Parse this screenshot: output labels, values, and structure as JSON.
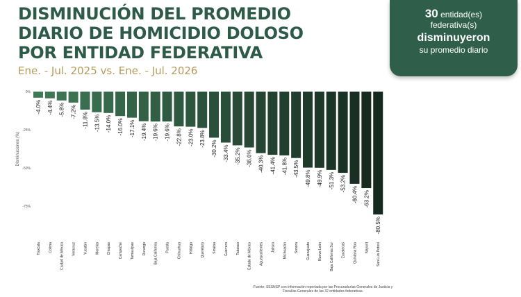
{
  "header": {
    "title_lines": [
      "DISMINUCIÓN DEL PROMEDIO",
      "DIARIO DE HOMICIDIO DOLOSO",
      "POR ENTIDAD FEDERATIVA"
    ],
    "subtitle": "Ene. - Jul. 2025 vs. Ene. - Jul. 2026"
  },
  "summary": {
    "count": "30",
    "line1_suffix": "entidad(es)",
    "line2": "federativa(s)",
    "line3": "disminuyeron",
    "line4": "su promedio diario"
  },
  "source": "Fuente: SESNSP con información reportada por las Procuradurías Generales de Justicia y Fiscalías Generales de las 32 entidades federativas.",
  "colors": {
    "title": "#2e5a48",
    "subtitle": "#b59a5e",
    "card_bg": "#2f5f4b",
    "bar_light": "#3f7a58",
    "bar_dark": "#16291f"
  },
  "chart_data": {
    "type": "bar",
    "orientation": "vertical",
    "ylabel": "Disminuciones (%)",
    "ylim": [
      -100,
      0
    ],
    "yticks": [
      0,
      -25,
      -50,
      -75
    ],
    "ytick_labels": [
      "0%",
      "-25%",
      "-50%",
      "-75%"
    ],
    "grid": false,
    "legend": "none",
    "categories": [
      "Tlaxcala",
      "Colima",
      "Ciudad de México",
      "Veracruz",
      "Yucatán",
      "Morelos",
      "Chiapas",
      "Campeche",
      "Tamaulipas",
      "Durango",
      "Baja California",
      "Puebla",
      "Chihuahua",
      "Hidalgo",
      "Querétaro",
      "Sinaloa",
      "Guerrero",
      "Tabasco",
      "Estado de México",
      "Aguascalientes",
      "Jalisco",
      "Michoacán",
      "Sonora",
      "Guanajuato",
      "Nuevo León",
      "Baja California Sur",
      "Zacatecas",
      "Quintana Roo",
      "Nayarit",
      "San Luis Potosí"
    ],
    "values": [
      -4.0,
      -4.4,
      -5.8,
      -7.2,
      -11.8,
      -13.5,
      -14.0,
      -16.0,
      -17.1,
      -19.4,
      -19.6,
      -19.6,
      -22.8,
      -23.0,
      -23.8,
      -30.2,
      -33.4,
      -35.2,
      -36.6,
      -40.3,
      -41.4,
      -41.8,
      -43.5,
      -49.8,
      -49.9,
      -51.3,
      -53.2,
      -60.4,
      -63.2,
      -80.5
    ],
    "data_labels": [
      "-4.0%",
      "-4.4%",
      "-5.8%",
      "-7.2%",
      "-11.8%",
      "-13.5%",
      "-14.0%",
      "-16.0%",
      "-17.1%",
      "-19.4%",
      "-19.6%",
      "-19.6%",
      "-22.8%",
      "-23.0%",
      "-23.8%",
      "-30.2%",
      "-33.4%",
      "-35.2%",
      "-36.6%",
      "-40.3%",
      "-41.4%",
      "-41.8%",
      "-43.5%",
      "-49.8%",
      "-49.9%",
      "-51.3%",
      "-53.2%",
      "-60.4%",
      "-63.2%",
      "-80.5%"
    ]
  }
}
